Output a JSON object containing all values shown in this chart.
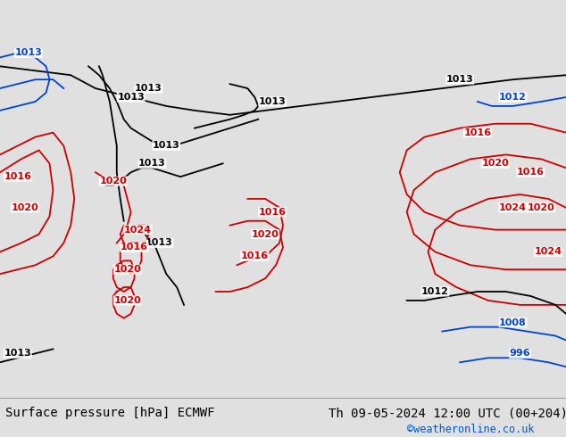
{
  "title_left": "Surface pressure [hPa] ECMWF",
  "title_right": "Th 09-05-2024 12:00 UTC (00+204)",
  "watermark": "©weatheronline.co.uk",
  "watermark_color": "#0055cc",
  "bg_color": "#d8e4ec",
  "land_color": "#b8f0a0",
  "land_edge_color": "#888888",
  "footer_bg": "#e0e0e0",
  "footer_text_color": "#000000",
  "black_isobar_color": "#000000",
  "red_isobar_color": "#cc0000",
  "blue_isobar_color": "#0044cc",
  "font_size_footer": 10,
  "font_size_labels": 8,
  "isobar_linewidth": 1.3,
  "lon_min": -105,
  "lon_max": 55,
  "lat_min": -65,
  "lat_max": 25
}
